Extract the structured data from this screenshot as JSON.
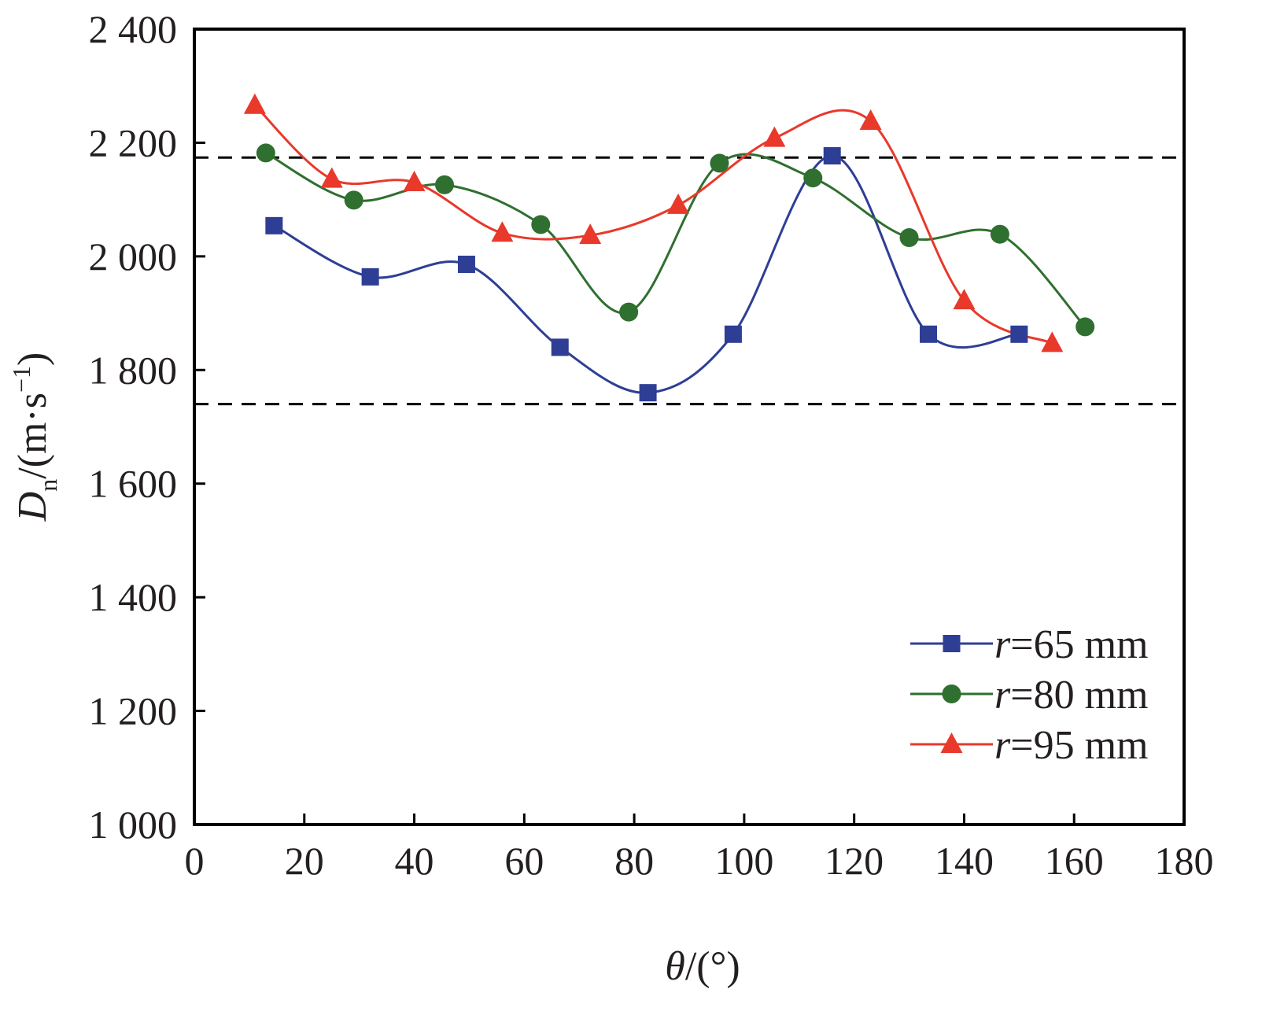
{
  "chart_data": {
    "type": "scatter",
    "title": "",
    "xlabel": {
      "var": "θ",
      "unit": "/(°)"
    },
    "ylabel": {
      "var": "D",
      "sub": "n",
      "unit_prefix": "/(m·s",
      "unit_sup": "−1",
      "unit_suffix": ")"
    },
    "xlim": [
      0,
      180
    ],
    "ylim": [
      1000,
      2400
    ],
    "x_ticks": [
      0,
      20,
      40,
      60,
      80,
      100,
      120,
      140,
      160,
      180
    ],
    "y_ticks": [
      1000,
      1200,
      1400,
      1600,
      1800,
      2000,
      2200,
      2400
    ],
    "x_tick_labels": [
      "0",
      "20",
      "40",
      "60",
      "80",
      "100",
      "120",
      "140",
      "160",
      "180"
    ],
    "y_tick_labels": [
      "1 000",
      "1 200",
      "1 400",
      "1 600",
      "1 800",
      "2 000",
      "2 200",
      "2 400"
    ],
    "reference_lines": [
      2174,
      1740
    ],
    "legend_position": "bottom-right",
    "series": [
      {
        "name": "r=65 mm",
        "label_var": "r",
        "label_rest": "=65 mm",
        "marker": "square",
        "color": "#2e3e95",
        "x": [
          14.5,
          32,
          49.5,
          66.5,
          82.5,
          98,
          116,
          133.5,
          150
        ],
        "y": [
          2054,
          1964,
          1986,
          1840,
          1760,
          1863,
          2177,
          1863,
          1863
        ]
      },
      {
        "name": "r=80 mm",
        "label_var": "r",
        "label_rest": "=80 mm",
        "marker": "circle",
        "color": "#2f6f2f",
        "x": [
          13,
          29,
          45.5,
          63,
          79,
          95.5,
          112.5,
          130,
          146.5,
          162
        ],
        "y": [
          2182,
          2099,
          2126,
          2056,
          1902,
          2164,
          2138,
          2033,
          2039,
          1876
        ]
      },
      {
        "name": "r=95 mm",
        "label_var": "r",
        "label_rest": "=95 mm",
        "marker": "triangle",
        "color": "#e8392b",
        "x": [
          11,
          25,
          40,
          56,
          72,
          88,
          105.5,
          123,
          140,
          156
        ],
        "y": [
          2266,
          2136,
          2130,
          2041,
          2037,
          2090,
          2208,
          2238,
          1922,
          1847
        ]
      }
    ]
  }
}
